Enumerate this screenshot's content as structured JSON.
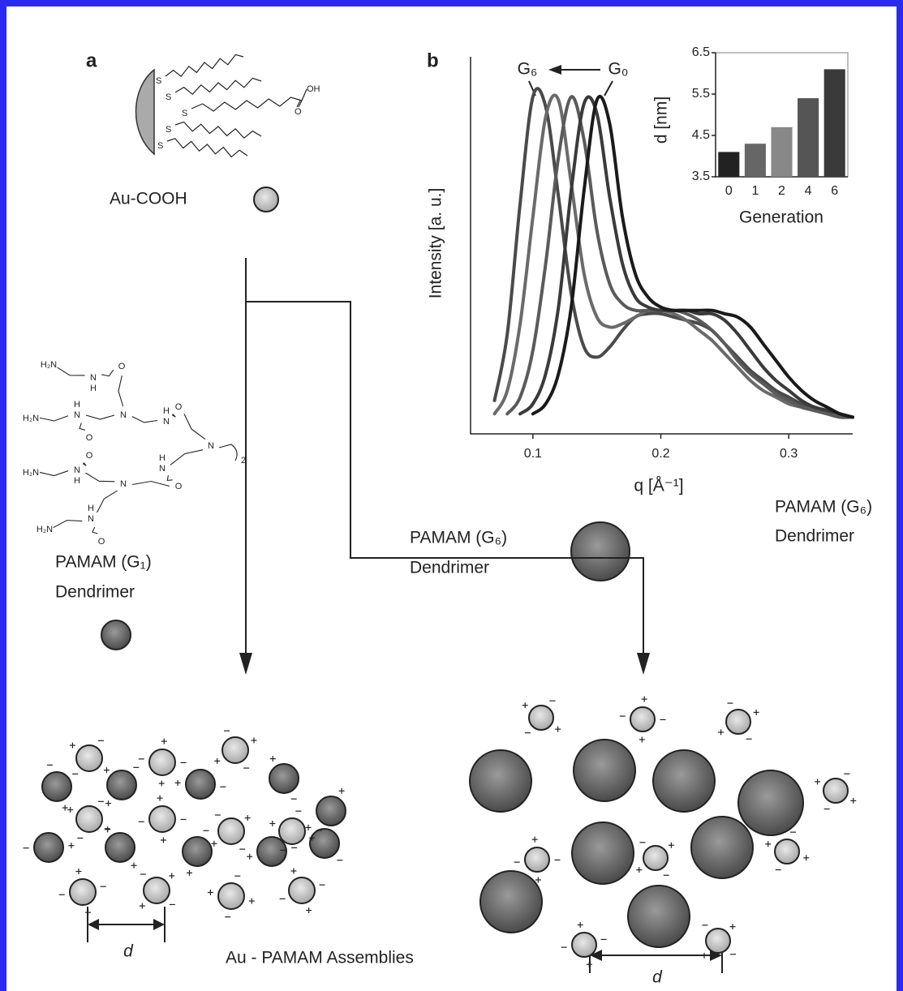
{
  "panel_labels": [
    "a",
    "b"
  ],
  "surface": {
    "label": "Au-COOH",
    "atoms": [
      "S",
      "S",
      "S",
      "S",
      "S",
      "OH",
      "O"
    ]
  },
  "dendrimer_g1": {
    "name": "PAMAM (G₁)",
    "kind": "Dendrimer",
    "atoms": [
      "H₂N",
      "N",
      "H",
      "O",
      "H₂N",
      "N",
      "H",
      "O",
      "N",
      "N",
      "H",
      "O",
      "N",
      "H₂N",
      "N",
      "H",
      "O",
      "N",
      "N",
      "H",
      "O",
      "H₂N",
      "N",
      "H",
      "O",
      "2"
    ]
  },
  "dendrimer_g6_middle": {
    "name": "PAMAM (G₆)",
    "kind": "Dendrimer"
  },
  "dendrimer_g6_right": {
    "name": "PAMAM (G₆)",
    "kind": "Dendrimer"
  },
  "chart": {
    "type": "line",
    "y_label": "Intensity [a. u.]",
    "x_label": "q [Å⁻¹]",
    "annotations": [
      "G₆",
      "G₀"
    ],
    "xlim": [
      0.05,
      0.35
    ],
    "ylim": [
      -0.03,
      1.1
    ],
    "xticks": [
      0.1,
      0.2,
      0.3
    ],
    "x": [
      0.06,
      0.07,
      0.08,
      0.09,
      0.1,
      0.11,
      0.12,
      0.13,
      0.14,
      0.15,
      0.16,
      0.17,
      0.18,
      0.19,
      0.2,
      0.21,
      0.22,
      0.23,
      0.24,
      0.25,
      0.26,
      0.27,
      0.28,
      0.29,
      0.3,
      0.31,
      0.32,
      0.33,
      0.34,
      0.35
    ],
    "series": [
      {
        "color": "#4a4a4a",
        "values": [
          null,
          0.07,
          0.27,
          0.66,
          0.98,
          0.95,
          0.68,
          0.39,
          0.23,
          0.2,
          0.23,
          0.28,
          0.32,
          0.33,
          0.33,
          0.32,
          0.31,
          0.3,
          0.28,
          0.24,
          0.2,
          0.16,
          0.13,
          0.1,
          0.08,
          0.06,
          0.05,
          0.04,
          0.03,
          0.02
        ]
      },
      {
        "color": "#6a6a6a",
        "values": [
          null,
          0.03,
          0.1,
          0.3,
          0.62,
          0.92,
          0.97,
          0.72,
          0.45,
          0.32,
          0.29,
          0.3,
          0.32,
          0.34,
          0.34,
          0.33,
          0.31,
          0.28,
          0.25,
          0.21,
          0.17,
          0.13,
          0.1,
          0.08,
          0.06,
          0.05,
          0.04,
          0.03,
          0.02,
          0.02
        ]
      },
      {
        "color": "#5a5a5a",
        "values": [
          null,
          null,
          0.03,
          0.08,
          0.22,
          0.48,
          0.8,
          0.98,
          0.85,
          0.58,
          0.42,
          0.36,
          0.34,
          0.34,
          0.34,
          0.34,
          0.33,
          0.31,
          0.28,
          0.24,
          0.19,
          0.15,
          0.12,
          0.09,
          0.07,
          0.05,
          0.04,
          0.03,
          0.02,
          0.02
        ]
      },
      {
        "color": "#3a3a3a",
        "values": [
          null,
          null,
          null,
          0.03,
          0.06,
          0.15,
          0.35,
          0.7,
          0.96,
          0.93,
          0.68,
          0.48,
          0.38,
          0.35,
          0.34,
          0.34,
          0.34,
          0.33,
          0.33,
          0.31,
          0.27,
          0.22,
          0.17,
          0.13,
          0.1,
          0.07,
          0.05,
          0.04,
          0.03,
          0.02
        ]
      },
      {
        "color": "#1a1a1a",
        "values": [
          null,
          null,
          null,
          null,
          0.03,
          0.06,
          0.15,
          0.35,
          0.7,
          0.97,
          0.9,
          0.62,
          0.45,
          0.38,
          0.35,
          0.34,
          0.34,
          0.34,
          0.34,
          0.33,
          0.32,
          0.29,
          0.24,
          0.19,
          0.14,
          0.1,
          0.07,
          0.05,
          0.03,
          0.02
        ]
      }
    ],
    "inset": {
      "type": "bar",
      "x_label": "Generation",
      "y_label": "d [nm]",
      "categories": [
        "0",
        "1",
        "2",
        "4",
        "6"
      ],
      "values": [
        4.1,
        4.3,
        4.7,
        5.4,
        6.1
      ],
      "colors": [
        "#222222",
        "#666666",
        "#888888",
        "#555555",
        "#3a3a3a"
      ],
      "ylim": [
        3.5,
        6.5
      ],
      "yticks": [
        3.5,
        4.5,
        5.5,
        6.5
      ]
    }
  },
  "assemblies": {
    "title": "Au - PAMAM Assemblies",
    "spacing_labels": [
      "d",
      "d"
    ]
  }
}
